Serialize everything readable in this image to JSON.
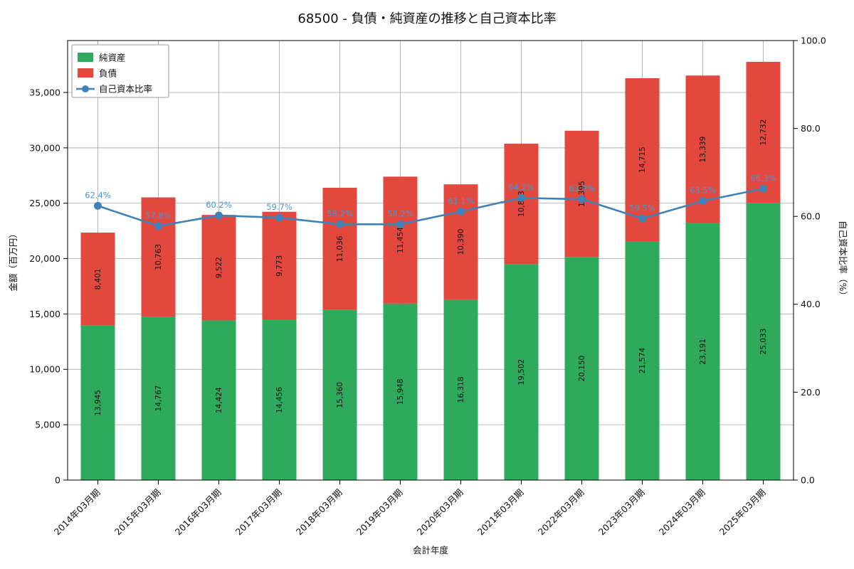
{
  "chart_data": {
    "type": "bar",
    "stacked": true,
    "title": "68500 - 負債・純資産の推移と自己資本比率",
    "xlabel": "会計年度",
    "ylabel_left": "金額（百万円）",
    "ylabel_right": "自己資本比率（%）",
    "categories": [
      "2014年03月期",
      "2015年03月期",
      "2016年03月期",
      "2017年03月期",
      "2018年03月期",
      "2019年03月期",
      "2020年03月期",
      "2021年03月期",
      "2022年03月期",
      "2023年03月期",
      "2024年03月期",
      "2025年03月期"
    ],
    "series": [
      {
        "name": "純資産",
        "color": "#2fa95c",
        "values": [
          13945,
          14767,
          14424,
          14456,
          15360,
          15948,
          16318,
          19502,
          20150,
          21574,
          23191,
          25033
        ]
      },
      {
        "name": "負債",
        "color": "#e2483d",
        "values": [
          8401,
          10763,
          9522,
          9773,
          11036,
          11454,
          10390,
          10873,
          11395,
          14715,
          13339,
          12732
        ]
      }
    ],
    "line_series": {
      "name": "自己資本比率",
      "color": "#3f82b8",
      "label_color": "#4a96cc",
      "axis": "right",
      "values": [
        62.4,
        57.8,
        60.2,
        59.7,
        58.2,
        58.2,
        61.1,
        64.2,
        63.9,
        59.5,
        63.5,
        66.3
      ]
    },
    "ylim_left": [
      0,
      39690
    ],
    "ylim_right": [
      0,
      100
    ],
    "ytick_values_left": [
      0,
      5000,
      10000,
      15000,
      20000,
      25000,
      30000,
      35000
    ],
    "ytick_values_right": [
      0,
      20,
      40,
      60,
      80,
      100
    ],
    "grid": true,
    "legend": {
      "position": "upper-left"
    }
  }
}
